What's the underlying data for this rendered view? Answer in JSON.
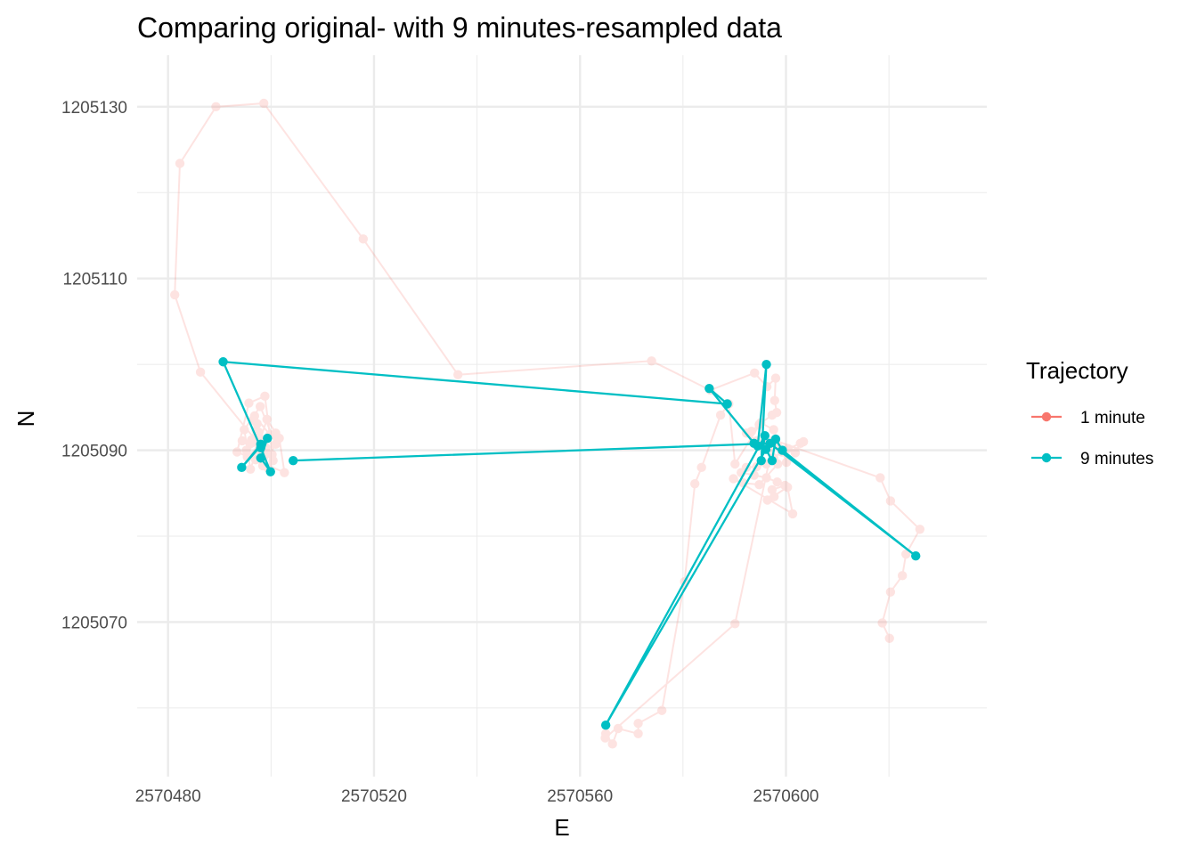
{
  "chart_data": {
    "type": "scatter",
    "title": "Comparing original- with 9 minutes-resampled data",
    "xlabel": "E",
    "ylabel": "N",
    "xlim": [
      2570474,
      2570639
    ],
    "ylim": [
      1205052,
      1205136
    ],
    "x_ticks": [
      2570480,
      2570520,
      2570560,
      2570600
    ],
    "x_tick_labels": [
      "2570480",
      "2570520",
      "2570560",
      "2570600"
    ],
    "x_minor_ticks": [
      2570500,
      2570540,
      2570580,
      2570620
    ],
    "y_ticks": [
      1205070,
      1205090,
      1205110,
      1205130
    ],
    "y_tick_labels": [
      "1205070",
      "1205090",
      "1205110",
      "1205130"
    ],
    "y_minor_ticks": [
      1205060,
      1205080,
      1205100,
      1205120
    ],
    "grid": true,
    "legend": {
      "title": "Trajectory",
      "position": "right"
    },
    "series": [
      {
        "name": "1 minute",
        "color": "#F8766D",
        "alpha": 0.2,
        "points": [
          [
            2570497.6,
            1205090.0
          ],
          [
            2570496.2,
            1205091.2
          ],
          [
            2570498.9,
            1205089.6
          ],
          [
            2570497.1,
            1205092.3
          ],
          [
            2570495.4,
            1205089.2
          ],
          [
            2570499.8,
            1205091.8
          ],
          [
            2570496.8,
            1205094.0
          ],
          [
            2570498.4,
            1205088.2
          ],
          [
            2570500.9,
            1205090.7
          ],
          [
            2570497.9,
            1205095.1
          ],
          [
            2570494.8,
            1205092.4
          ],
          [
            2570496.0,
            1205087.8
          ],
          [
            2570499.2,
            1205093.6
          ],
          [
            2570501.6,
            1205091.4
          ],
          [
            2570502.6,
            1205087.4
          ],
          [
            2570493.4,
            1205089.8
          ],
          [
            2570495.7,
            1205095.5
          ],
          [
            2570498.8,
            1205096.3
          ],
          [
            2570500.4,
            1205088.8
          ],
          [
            2570497.3,
            1205093.1
          ],
          [
            2570495.9,
            1205090.8
          ],
          [
            2570494.4,
            1205091.1
          ],
          [
            2570499.0,
            1205090.3
          ],
          [
            2570497.6,
            1205092.1
          ],
          [
            2570496.5,
            1205093.5
          ],
          [
            2570498.6,
            1205091.0
          ],
          [
            2570500.2,
            1205089.5
          ],
          [
            2570497.0,
            1205088.9
          ],
          [
            2570495.2,
            1205090.0
          ],
          [
            2570500.9,
            1205092.0
          ],
          [
            2570499.5,
            1205087.9
          ],
          [
            2570497.4,
            1205090.9
          ],
          [
            2570486.3,
            1205099.1
          ],
          [
            2570481.3,
            1205108.1
          ],
          [
            2570482.3,
            1205123.4
          ],
          [
            2570489.3,
            1205130.0
          ],
          [
            2570498.6,
            1205130.4
          ],
          [
            2570517.9,
            1205114.6
          ],
          [
            2570536.3,
            1205098.8
          ],
          [
            2570573.9,
            1205100.4
          ],
          [
            2570585.3,
            1205097.0
          ],
          [
            2570593.9,
            1205099.0
          ],
          [
            2570596.3,
            1205097.4
          ],
          [
            2570598.0,
            1205098.4
          ],
          [
            2570597.8,
            1205095.8
          ],
          [
            2570598.2,
            1205094.4
          ],
          [
            2570597.3,
            1205094.1
          ],
          [
            2570594.8,
            1205093.0
          ],
          [
            2570593.3,
            1205092.2
          ],
          [
            2570592.3,
            1205092.0
          ],
          [
            2570594.3,
            1205091.1
          ],
          [
            2570596.1,
            1205090.9
          ],
          [
            2570598.3,
            1205090.6
          ],
          [
            2570600.4,
            1205090.2
          ],
          [
            2570601.8,
            1205089.7
          ],
          [
            2570602.8,
            1205090.8
          ],
          [
            2570603.4,
            1205091.0
          ],
          [
            2570599.2,
            1205089.8
          ],
          [
            2570597.6,
            1205089.1
          ],
          [
            2570596.2,
            1205088.4
          ],
          [
            2570594.3,
            1205088.1
          ],
          [
            2570592.3,
            1205088.0
          ],
          [
            2570591.3,
            1205087.4
          ],
          [
            2570593.8,
            1205087.1
          ],
          [
            2570596.2,
            1205086.8
          ],
          [
            2570598.3,
            1205086.3
          ],
          [
            2570599.8,
            1205085.9
          ],
          [
            2570597.3,
            1205085.4
          ],
          [
            2570597.7,
            1205084.6
          ],
          [
            2570596.4,
            1205084.2
          ],
          [
            2570600.3,
            1205085.7
          ],
          [
            2570601.3,
            1205082.6
          ],
          [
            2570589.8,
            1205086.7
          ],
          [
            2570591.7,
            1205086.2
          ],
          [
            2570594.8,
            1205086.0
          ],
          [
            2570598.4,
            1205088.4
          ],
          [
            2570600.1,
            1205088.6
          ],
          [
            2570597.6,
            1205092.4
          ],
          [
            2570595.1,
            1205093.2
          ],
          [
            2570590.1,
            1205088.4
          ],
          [
            2570588.9,
            1205095.4
          ],
          [
            2570587.3,
            1205094.1
          ],
          [
            2570583.6,
            1205088.0
          ],
          [
            2570582.3,
            1205086.1
          ],
          [
            2570580.3,
            1205074.7
          ],
          [
            2570575.9,
            1205059.7
          ],
          [
            2570571.3,
            1205058.2
          ],
          [
            2570571.3,
            1205057.0
          ],
          [
            2570567.4,
            1205057.6
          ],
          [
            2570566.3,
            1205055.8
          ],
          [
            2570565.0,
            1205057.0
          ],
          [
            2570564.9,
            1205056.5
          ],
          [
            2570590.1,
            1205069.8
          ],
          [
            2570597.6,
            1205091.2
          ],
          [
            2570618.3,
            1205086.8
          ],
          [
            2570620.3,
            1205084.1
          ],
          [
            2570626.0,
            1205080.8
          ],
          [
            2570623.3,
            1205077.9
          ],
          [
            2570622.6,
            1205075.4
          ],
          [
            2570620.3,
            1205073.5
          ],
          [
            2570618.7,
            1205069.9
          ],
          [
            2570620.1,
            1205068.1
          ]
        ]
      },
      {
        "name": "9 minutes",
        "color": "#00BFC4",
        "alpha": 1,
        "points": [
          [
            2570498.0,
            1205090.7
          ],
          [
            2570494.3,
            1205088.0
          ],
          [
            2570499.3,
            1205091.4
          ],
          [
            2570498.0,
            1205089.1
          ],
          [
            2570499.9,
            1205087.5
          ],
          [
            2570498.0,
            1205090.3
          ],
          [
            2570490.7,
            1205100.3
          ],
          [
            2570588.6,
            1205095.4
          ],
          [
            2570585.1,
            1205097.2
          ],
          [
            2570593.8,
            1205090.8
          ],
          [
            2570594.5,
            1205090.5
          ],
          [
            2570596.2,
            1205100.0
          ],
          [
            2570595.2,
            1205088.8
          ],
          [
            2570595.9,
            1205091.7
          ],
          [
            2570565.0,
            1205058.0
          ],
          [
            2570596.1,
            1205090.1
          ],
          [
            2570597.3,
            1205088.8
          ],
          [
            2570598.0,
            1205091.3
          ],
          [
            2570599.3,
            1205090.0
          ],
          [
            2570625.2,
            1205077.7
          ],
          [
            2570596.9,
            1205090.8
          ],
          [
            2570504.3,
            1205088.8
          ]
        ]
      }
    ]
  }
}
